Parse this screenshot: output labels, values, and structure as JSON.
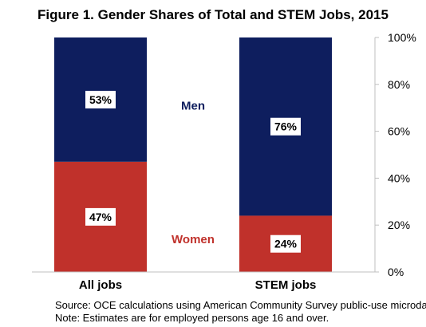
{
  "chart_data": {
    "type": "bar",
    "stacked": true,
    "title": "Figure 1. Gender Shares of Total and STEM Jobs, 2015",
    "categories": [
      "All jobs",
      "STEM jobs"
    ],
    "series": [
      {
        "name": "Women",
        "values": [
          47,
          24
        ],
        "color": "#C0312B"
      },
      {
        "name": "Men",
        "values": [
          53,
          76
        ],
        "color": "#0E1E5E"
      }
    ],
    "data_labels": [
      {
        "series": "Women",
        "labels": [
          "47%",
          "24%"
        ]
      },
      {
        "series": "Men",
        "labels": [
          "53%",
          "76%"
        ]
      }
    ],
    "ylim": [
      0,
      100
    ],
    "yticks": [
      0,
      20,
      40,
      60,
      80,
      100
    ],
    "ytick_labels": [
      "0%",
      "20%",
      "40%",
      "60%",
      "80%",
      "100%"
    ],
    "y_axis_side": "right",
    "grid": false,
    "legend": "inline labels between bars",
    "xlabel": "",
    "ylabel": ""
  },
  "notes": [
    "Source: OCE calculations using American Community Survey public-use microdata.",
    "Note: Estimates are for employed persons age 16 and over."
  ]
}
